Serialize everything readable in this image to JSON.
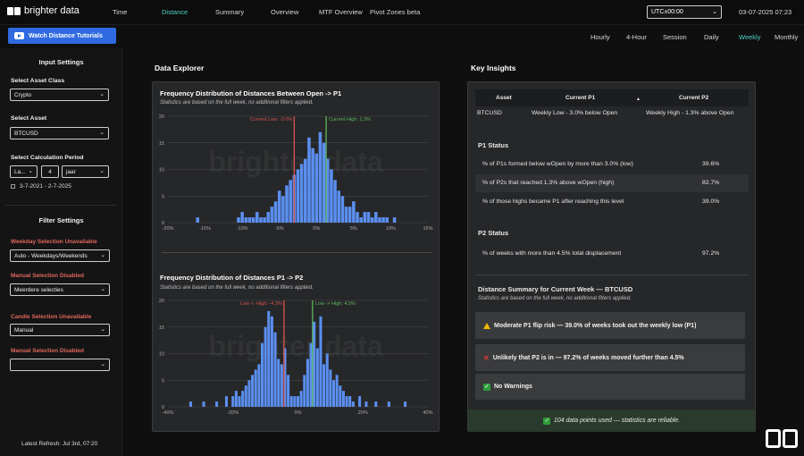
{
  "header": {
    "logo_text": "brighter data",
    "nav_tabs": [
      {
        "label": "Time",
        "active": false
      },
      {
        "label": "Distance",
        "active": true
      },
      {
        "label": "Summary",
        "active": false
      },
      {
        "label": "Overview",
        "active": false
      },
      {
        "label": "MTF Overview",
        "active": false
      },
      {
        "label": "Pivot Zones beta",
        "active": false
      }
    ],
    "timezone": "UTC±00:00",
    "datetime": "03-07-2025 07:23"
  },
  "toolbar": {
    "tutorial_button": "Watch Distance Tutorials",
    "timeframes": [
      {
        "label": "Hourly",
        "active": false
      },
      {
        "label": "4-Hour",
        "active": false
      },
      {
        "label": "Session",
        "active": false
      },
      {
        "label": "Daily",
        "active": false
      },
      {
        "label": "Weekly",
        "active": true
      },
      {
        "label": "Monthly",
        "active": false
      }
    ]
  },
  "sidebar": {
    "input_title": "Input Settings",
    "asset_class_label": "Select Asset Class",
    "asset_class_value": "Crypto",
    "asset_label": "Select Asset",
    "asset_value": "BTCUSD",
    "period_label": "Select Calculation Period",
    "period_unit_value": "La...",
    "period_count": "4",
    "period_type_value": "jaar",
    "period_range": "3-7-2021 - 2-7-2025",
    "filter_title": "Filter Settings",
    "weekday_label": "Weekday Selection Unavailable",
    "weekday_value": "Auto - Weekdays/Weekends",
    "manual1_label": "Manual Selection Disabled",
    "manual1_value": "Meerdere selecties",
    "candle_label": "Candle Selection Unavailable",
    "candle_value": "Manual",
    "manual2_label": "Manual Selection Disabled",
    "manual2_value": "",
    "latest_refresh": "Latest Refresh: Jul 3rd, 07:20"
  },
  "explorer": {
    "title": "Data Explorer",
    "watermark": "brighter data",
    "chart1_title": "Frequency Distribution of Distances Between Open -> P1",
    "chart1_subtitle": "Statistics are based on the full week, no additional filters applied.",
    "chart2_title": "Frequency Distribution of Distances P1 -> P2",
    "chart2_subtitle": "Statistics are based on the full week, no additional filters applied."
  },
  "chart_data": [
    {
      "type": "bar",
      "title": "Frequency Distribution of Distances Between Open -> P1",
      "x_ticks": [
        "-20%",
        "-15%",
        "-10%",
        "-5%",
        "0%",
        "5%",
        "10%",
        "15%"
      ],
      "xlim": [
        -20,
        15
      ],
      "y_ticks": [
        "0",
        "5",
        "10",
        "15",
        "20"
      ],
      "ylim": [
        0,
        20
      ],
      "bin_width": 0.5,
      "x": [
        -16,
        -10.5,
        -10,
        -9.5,
        -9,
        -8.5,
        -8,
        -7.5,
        -7,
        -6.5,
        -6,
        -5.5,
        -5,
        -4.5,
        -4,
        -3.5,
        -3,
        -2.5,
        -2,
        -1.5,
        -1,
        -0.5,
        0,
        0.5,
        1,
        1.5,
        2,
        2.5,
        3,
        3.5,
        4,
        4.5,
        5,
        5.5,
        6,
        6.5,
        7,
        7.5,
        8,
        8.5,
        9,
        9.5,
        10.5
      ],
      "values": [
        1,
        1,
        2,
        1,
        1,
        1,
        2,
        1,
        1,
        2,
        3,
        4,
        6,
        5,
        7,
        8,
        9,
        10,
        11,
        12,
        16,
        14,
        13,
        17,
        15,
        12,
        10,
        8,
        6,
        5,
        3,
        3,
        4,
        2,
        1,
        2,
        2,
        1,
        2,
        1,
        1,
        1,
        1
      ],
      "color": "#5b8ff0",
      "vlines": [
        {
          "label": "Current Low: -3.0%",
          "x": -3.0,
          "color": "#d9534f"
        },
        {
          "label": "Current High: 1.3%",
          "x": 1.3,
          "color": "#5cb85c"
        }
      ]
    },
    {
      "type": "bar",
      "title": "Frequency Distribution of Distances P1 -> P2",
      "x_ticks": [
        "-40%",
        "-20%",
        "0%",
        "20%",
        "40%"
      ],
      "xlim": [
        -40,
        40
      ],
      "y_ticks": [
        "0",
        "5",
        "10",
        "15",
        "20"
      ],
      "ylim": [
        0,
        20
      ],
      "bin_width": 1,
      "x": [
        -33,
        -29,
        -25,
        -22,
        -20,
        -19,
        -18,
        -17,
        -16,
        -15,
        -14,
        -13,
        -12,
        -11,
        -10,
        -9,
        -8,
        -7,
        -6,
        -5,
        -4,
        -3,
        -2,
        -1,
        0,
        1,
        2,
        3,
        4,
        5,
        6,
        7,
        8,
        9,
        10,
        11,
        12,
        13,
        14,
        15,
        16,
        17,
        19,
        21,
        24,
        28,
        33
      ],
      "values": [
        1,
        1,
        1,
        2,
        2,
        3,
        2,
        3,
        4,
        5,
        6,
        7,
        8,
        12,
        15,
        18,
        17,
        14,
        9,
        8,
        11,
        6,
        2,
        2,
        2,
        3,
        6,
        9,
        12,
        16,
        11,
        17,
        8,
        10,
        7,
        5,
        6,
        4,
        3,
        2,
        2,
        1,
        2,
        1,
        1,
        1,
        1
      ],
      "color": "#5b8ff0",
      "vlines": [
        {
          "label": "Low <- High: -4.3%",
          "x": -4.3,
          "color": "#d9534f"
        },
        {
          "label": "Low -> High: 4.5%",
          "x": 4.5,
          "color": "#5cb85c"
        }
      ]
    }
  ],
  "insights": {
    "title": "Key Insights",
    "table_headers": [
      "Asset",
      "Current P1",
      "Current P2"
    ],
    "table_row": [
      "BTCUSD",
      "Weekly Low - 3.0% below Open",
      "Weekly High - 1.3% above Open"
    ],
    "p1_status_title": "P1 Status",
    "p1_rows": [
      {
        "label": "% of P1s formed below wOpen by more than 3.0% (low)",
        "value": "39.6%"
      },
      {
        "label": "% of P2s that reached 1.3% above wOpen (high)",
        "value": "82.7%"
      },
      {
        "label": "% of those highs became P1 after reaching this level",
        "value": "39.0%"
      }
    ],
    "p2_status_title": "P2 Status",
    "p2_rows": [
      {
        "label": "% of weeks with more than 4.5% total displacement",
        "value": "97.2%"
      }
    ],
    "summary_title": "Distance Summary for Current Week — BTCUSD",
    "summary_subtitle": "Statistics are based on the full week, no additional filters applied.",
    "alerts": [
      {
        "icon": "warning-icon",
        "text": "Moderate P1 flip risk — 39.0% of weeks took out the weekly low (P1)"
      },
      {
        "icon": "cross-icon",
        "text": "Unlikely that P2 is in — 97.2% of weeks moved further than 4.5%"
      },
      {
        "icon": "check-icon",
        "text": "No Warnings"
      }
    ],
    "footer_text": "104 data points used — statistics are reliable."
  }
}
